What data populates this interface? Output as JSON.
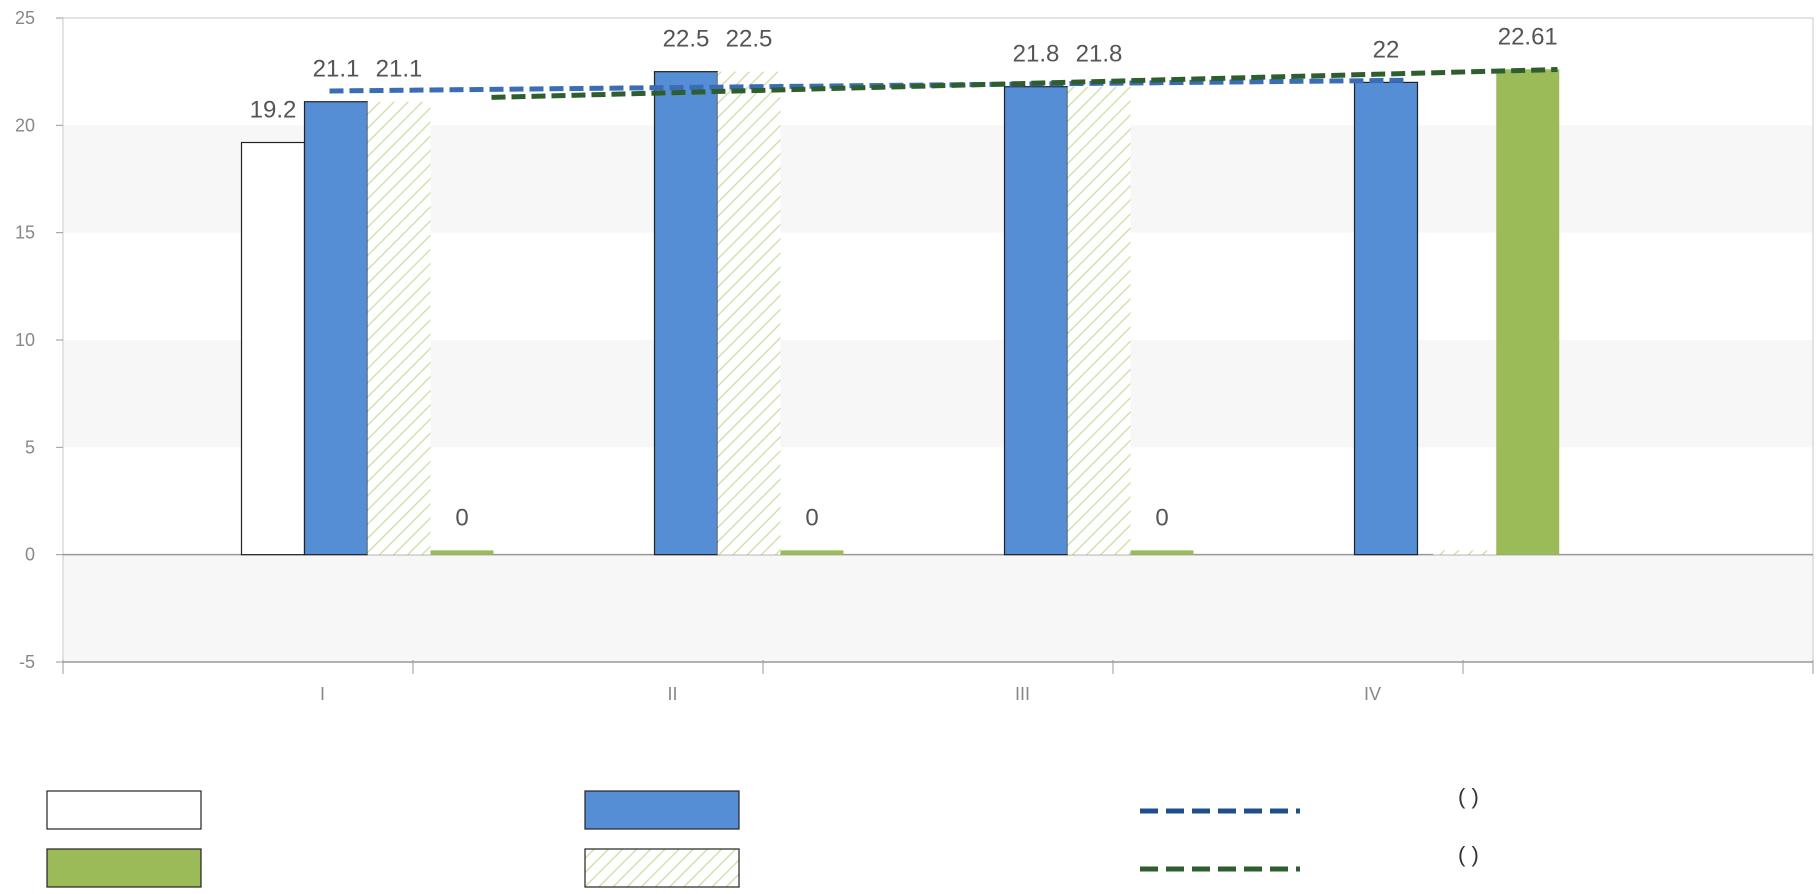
{
  "chart_data": {
    "type": "bar",
    "categories": [
      "I",
      "II",
      "III",
      "IV"
    ],
    "ylim": [
      -5,
      25
    ],
    "yticks": [
      -5,
      0,
      5,
      10,
      15,
      20,
      25
    ],
    "grid": "alternating-bands",
    "legend_position": "bottom",
    "colors": {
      "white_bar": "#ffffff",
      "blue_bar": "#558ed5",
      "green_bar": "#9bbb59",
      "hatch": "#c9dea0",
      "blue_trend": "#3a6db5",
      "green_trend": "#2e5e2e",
      "bar_stroke": "#222222",
      "axis": "#999999"
    },
    "series": [
      {
        "style": "white",
        "values": [
          19.2,
          null,
          null,
          null
        ],
        "labels": [
          "19.2",
          "",
          "",
          ""
        ]
      },
      {
        "style": "blue",
        "values": [
          21.1,
          22.5,
          21.8,
          22
        ],
        "labels": [
          "21.1",
          "22.5",
          "21.8",
          "22"
        ]
      },
      {
        "style": "hatched",
        "values": [
          21.1,
          22.5,
          21.8,
          0.2
        ],
        "labels": [
          "21.1",
          "22.5",
          "21.8",
          ""
        ]
      },
      {
        "style": "green",
        "values": [
          0.2,
          0.2,
          0.2,
          22.61
        ],
        "labels": [
          "0",
          "0",
          "0",
          "22.61"
        ]
      }
    ],
    "trendlines": [
      {
        "style": "blue-dashed",
        "from": {
          "category": "I",
          "value": 21.6
        },
        "to": {
          "category": "IV",
          "value": 22.1
        }
      },
      {
        "style": "green-dashed",
        "from": {
          "category": "I",
          "value": 21.3
        },
        "to": {
          "category": "IV",
          "value": 22.6
        }
      }
    ],
    "legend": [
      {
        "swatch": "white-box",
        "text": ""
      },
      {
        "swatch": "blue-box",
        "text": ""
      },
      {
        "swatch": "blue-dashed-line",
        "text": "(     )"
      },
      {
        "swatch": "green-box",
        "text": ""
      },
      {
        "swatch": "hatched-box",
        "text": ""
      },
      {
        "swatch": "green-dashed-line",
        "text": "(         )"
      }
    ]
  }
}
